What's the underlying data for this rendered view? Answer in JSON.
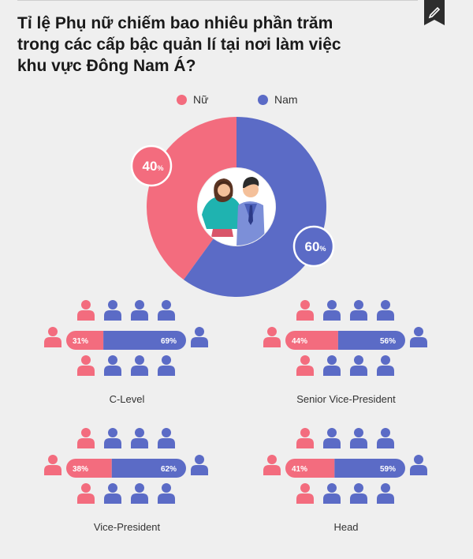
{
  "title_lines": [
    "Tỉ lệ Phụ nữ chiếm bao nhiêu phần trăm",
    "trong các cấp bậc quản lí tại nơi làm việc",
    "khu vực Đông Nam Á?"
  ],
  "colors": {
    "female": "#f36c7e",
    "male": "#5b6bc6",
    "bg": "#efefef"
  },
  "chart_data": [
    {
      "type": "pie",
      "donut": true,
      "series": [
        {
          "name": "Nữ",
          "value": 40,
          "label": "40%"
        },
        {
          "name": "Nam",
          "value": 60,
          "label": "60%"
        }
      ],
      "legend_position": "top"
    },
    {
      "type": "bar",
      "stacked": "percent",
      "categories": [
        "C-Level",
        "Senior Vice-President",
        "Vice-President",
        "Head"
      ],
      "series": [
        {
          "name": "Nữ",
          "values": [
            31,
            44,
            38,
            41
          ],
          "labels": [
            "31%",
            "44%",
            "38%",
            "41%"
          ]
        },
        {
          "name": "Nam",
          "values": [
            69,
            56,
            62,
            59
          ],
          "labels": [
            "69%",
            "56%",
            "62%",
            "59%"
          ]
        }
      ]
    }
  ]
}
